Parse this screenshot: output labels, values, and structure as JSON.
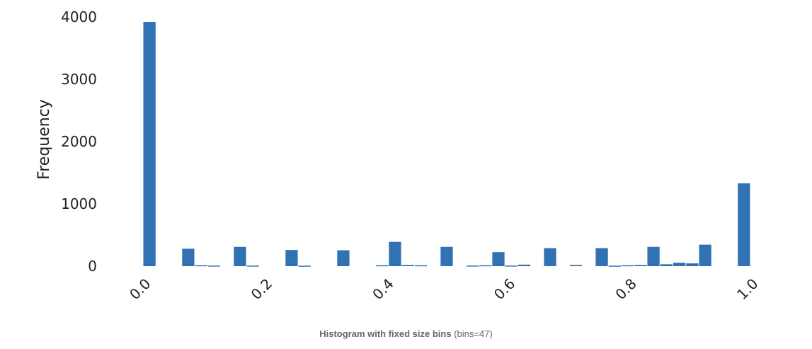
{
  "chart_data": {
    "type": "bar",
    "title": "",
    "xlabel": "",
    "ylabel": "Frequency",
    "xlim": [
      0.0,
      1.0
    ],
    "ylim": [
      0,
      4000
    ],
    "x_ticks": [
      0.0,
      0.2,
      0.4,
      0.6,
      0.8,
      1.0
    ],
    "x_tick_labels": [
      "0.0",
      "0.2",
      "0.4",
      "0.6",
      "0.8",
      "1.0"
    ],
    "y_ticks": [
      0,
      1000,
      2000,
      3000,
      4000
    ],
    "y_tick_labels": [
      "0",
      "1000",
      "2000",
      "3000",
      "4000"
    ],
    "bins": 47,
    "bar_color": "#3072b2",
    "values": [
      3920,
      0,
      0,
      280,
      15,
      10,
      0,
      310,
      10,
      0,
      0,
      260,
      8,
      0,
      0,
      255,
      0,
      0,
      15,
      390,
      20,
      15,
      0,
      310,
      0,
      10,
      15,
      225,
      10,
      25,
      0,
      290,
      0,
      20,
      0,
      290,
      8,
      15,
      20,
      310,
      30,
      55,
      45,
      345,
      0,
      0,
      1330
    ]
  },
  "caption": {
    "bold": "Histogram with fixed size bins",
    "rest": "(bins=47)"
  }
}
